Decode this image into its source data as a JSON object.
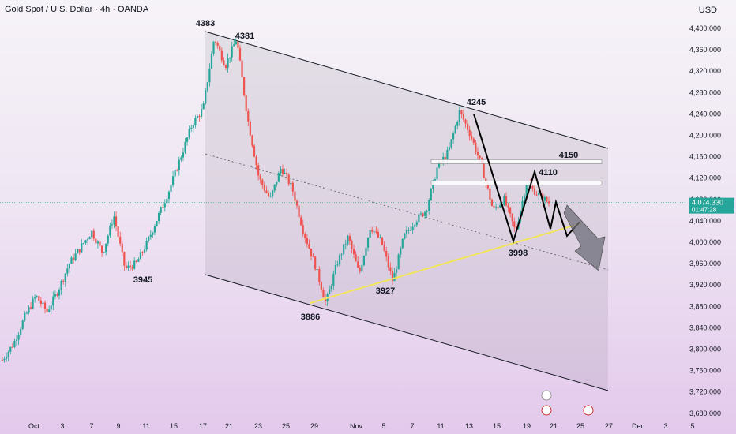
{
  "header": {
    "title": "Gold Spot / U.S. Dollar · 4h · OANDA",
    "currency": "USD"
  },
  "price_tag": {
    "price": "4,074.330",
    "countdown": "01:47:28",
    "color": "#26a69a"
  },
  "colors": {
    "up": "#26a69a",
    "down": "#ef5350",
    "support": "#f2e55c",
    "channel": "#131722"
  },
  "chart_data": {
    "type": "candlestick",
    "title": "Gold Spot / U.S. Dollar · 4h · OANDA",
    "y_unit": "USD",
    "ylim": [
      3660,
      4440
    ],
    "y_ticks": [
      "4,400.000",
      "4,360.000",
      "4,320.000",
      "4,280.000",
      "4,240.000",
      "4,200.000",
      "4,160.000",
      "4,120.000",
      "4,080.000",
      "4,040.000",
      "4,000.000",
      "3,960.000",
      "3,920.000",
      "3,880.000",
      "3,840.000",
      "3,800.000",
      "3,760.000",
      "3,720.000",
      "3,680.000"
    ],
    "x_ticks": [
      "Oct",
      "3",
      "7",
      "9",
      "11",
      "15",
      "17",
      "21",
      "23",
      "25",
      "29",
      "Nov",
      "5",
      "7",
      "11",
      "13",
      "15",
      "19",
      "21",
      "25",
      "27",
      "Dec",
      "3",
      "5"
    ],
    "close_path": [
      3780,
      3810,
      3860,
      3900,
      3870,
      3910,
      3960,
      3990,
      4020,
      3980,
      4050,
      3950,
      3960,
      4000,
      4050,
      4100,
      4160,
      4220,
      4250,
      4383,
      4330,
      4381,
      4230,
      4120,
      4080,
      4140,
      4100,
      4020,
      3960,
      3886,
      3960,
      4010,
      3940,
      4030,
      4000,
      3927,
      4010,
      4040,
      4060,
      4140,
      4170,
      4245,
      4200,
      4140,
      4060,
      4080,
      4020,
      4110,
      4090,
      4074
    ],
    "swing_labels": [
      {
        "text": "4383",
        "value": 4383
      },
      {
        "text": "4381",
        "value": 4381
      },
      {
        "text": "3945",
        "value": 3945
      },
      {
        "text": "4245",
        "value": 4245
      },
      {
        "text": "4150",
        "value": 4150
      },
      {
        "text": "4110",
        "value": 4110
      },
      {
        "text": "3998",
        "value": 3998
      },
      {
        "text": "3927",
        "value": 3927
      },
      {
        "text": "3886",
        "value": 3886
      }
    ],
    "resistance_zones": [
      4150,
      4110
    ],
    "current_price": 4074.33
  }
}
